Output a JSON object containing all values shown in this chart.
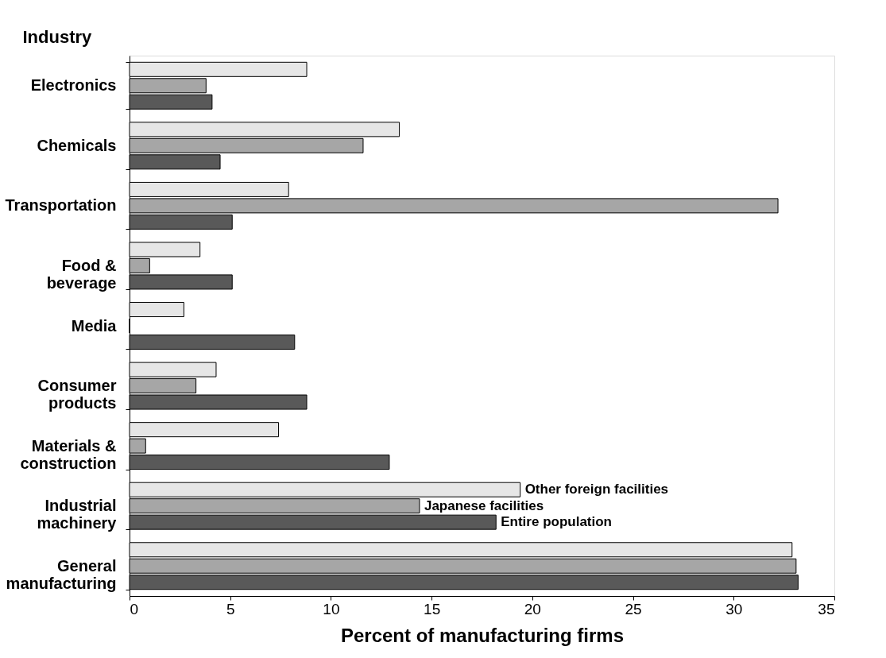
{
  "chart_data": {
    "type": "bar",
    "orientation": "horizontal",
    "ylabel": "Industry",
    "xlabel": "Percent of manufacturing firms",
    "categories": [
      "Electronics",
      "Chemicals",
      "Transportation",
      "Food &\nbeverage",
      "Media",
      "Consumer\nproducts",
      "Materials &\nconstruction",
      "Industrial\nmachinery",
      "General\nmanufacturing"
    ],
    "series": [
      {
        "name": "Other foreign facilities",
        "color": "#e6e6e6",
        "values": [
          8.8,
          13.4,
          7.9,
          3.5,
          2.7,
          4.3,
          7.4,
          19.4,
          32.9
        ]
      },
      {
        "name": "Japanese facilities",
        "color": "#a6a6a6",
        "values": [
          3.8,
          11.6,
          32.2,
          1.0,
          0,
          3.3,
          0.8,
          14.4,
          33.1
        ]
      },
      {
        "name": "Entire population",
        "color": "#595959",
        "values": [
          4.1,
          4.5,
          5.1,
          5.1,
          8.2,
          8.8,
          12.9,
          18.2,
          33.2
        ]
      }
    ],
    "xlim": [
      0,
      35
    ],
    "xticks": [
      0,
      5,
      10,
      15,
      20,
      25,
      30,
      35
    ],
    "grid": false
  }
}
